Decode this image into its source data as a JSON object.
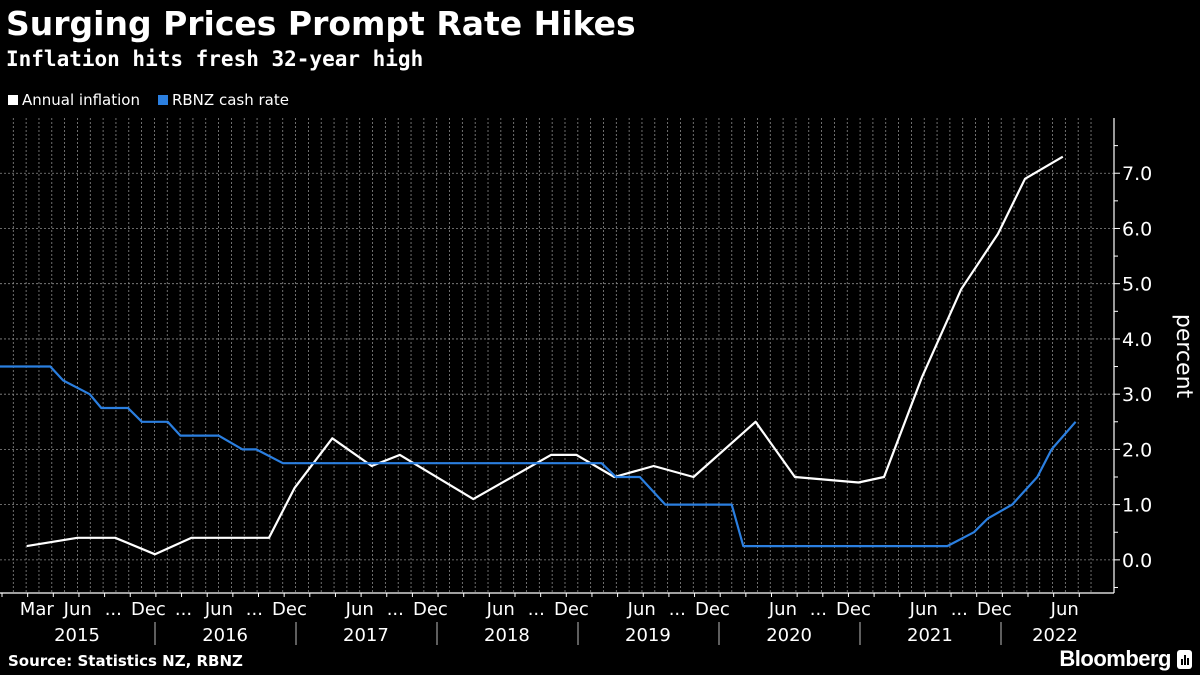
{
  "header": {
    "title": "Surging Prices Prompt Rate Hikes",
    "subtitle": "Inflation hits fresh 32-year high"
  },
  "footer": {
    "source": "Source: Statistics NZ, RBNZ",
    "brand": "Bloomberg"
  },
  "chart_data": {
    "type": "line",
    "title": "Surging Prices Prompt Rate Hikes",
    "subtitle": "Inflation hits fresh 32-year high",
    "ylabel": "percent",
    "ylim": [
      -0.6,
      8.0
    ],
    "y_ticks": [
      "0.0",
      "1.0",
      "2.0",
      "3.0",
      "4.0",
      "5.0",
      "6.0",
      "7.0"
    ],
    "y_axis_side": "right",
    "grid": true,
    "legend_position": "top-left",
    "x_month_labels": [
      {
        "label": "Mar",
        "date": "2015-03-01"
      },
      {
        "label": "Jun",
        "date": "2015-06-15"
      },
      {
        "label": "...",
        "date": "2015-09-15"
      },
      {
        "label": "Dec",
        "date": "2015-12-15"
      },
      {
        "label": "...",
        "date": "2016-03-15"
      },
      {
        "label": "Jun",
        "date": "2016-06-15"
      },
      {
        "label": "...",
        "date": "2016-09-15"
      },
      {
        "label": "Dec",
        "date": "2016-12-15"
      },
      {
        "label": "Jun",
        "date": "2017-06-15"
      },
      {
        "label": "...",
        "date": "2017-09-15"
      },
      {
        "label": "Dec",
        "date": "2017-12-15"
      },
      {
        "label": "Jun",
        "date": "2018-06-15"
      },
      {
        "label": "...",
        "date": "2018-09-15"
      },
      {
        "label": "Dec",
        "date": "2018-12-15"
      },
      {
        "label": "Jun",
        "date": "2019-06-15"
      },
      {
        "label": "...",
        "date": "2019-09-15"
      },
      {
        "label": "Dec",
        "date": "2019-12-15"
      },
      {
        "label": "Jun",
        "date": "2020-06-15"
      },
      {
        "label": "...",
        "date": "2020-09-15"
      },
      {
        "label": "Dec",
        "date": "2020-12-15"
      },
      {
        "label": "Jun",
        "date": "2021-06-15"
      },
      {
        "label": "...",
        "date": "2021-09-15"
      },
      {
        "label": "Dec",
        "date": "2021-12-15"
      },
      {
        "label": "Jun",
        "date": "2022-06-15"
      }
    ],
    "x_year_labels": [
      "2015",
      "2016",
      "2017",
      "2018",
      "2019",
      "2020",
      "2021",
      "2022"
    ],
    "colors": {
      "Annual inflation": "#ffffff",
      "RBNZ cash rate": "#2b7fe0",
      "grid": "#8a8a8a"
    },
    "series": [
      {
        "name": "Annual inflation",
        "points": [
          [
            "2015-02-03",
            0.25
          ],
          [
            "2015-06-14",
            0.4
          ],
          [
            "2015-09-20",
            0.4
          ],
          [
            "2016-01-01",
            0.1
          ],
          [
            "2016-04-05",
            0.4
          ],
          [
            "2016-10-23",
            0.4
          ],
          [
            "2016-12-28",
            1.3
          ],
          [
            "2017-04-05",
            2.2
          ],
          [
            "2017-07-16",
            1.7
          ],
          [
            "2017-09-27",
            1.9
          ],
          [
            "2018-04-05",
            1.1
          ],
          [
            "2018-10-23",
            1.9
          ],
          [
            "2018-12-28",
            1.9
          ],
          [
            "2019-04-05",
            1.5
          ],
          [
            "2019-07-16",
            1.7
          ],
          [
            "2019-10-27",
            1.5
          ],
          [
            "2020-04-05",
            2.5
          ],
          [
            "2020-07-16",
            1.5
          ],
          [
            "2020-12-28",
            1.4
          ],
          [
            "2021-03-04",
            1.5
          ],
          [
            "2021-06-10",
            3.3
          ],
          [
            "2021-09-20",
            4.9
          ],
          [
            "2021-12-24",
            5.9
          ],
          [
            "2022-03-04",
            6.9
          ],
          [
            "2022-06-10",
            7.3
          ]
        ]
      },
      {
        "name": "RBNZ cash rate",
        "points": [
          [
            "2014-11-25",
            3.5
          ],
          [
            "2015-04-05",
            3.5
          ],
          [
            "2015-05-08",
            3.25
          ],
          [
            "2015-07-16",
            3.0
          ],
          [
            "2015-08-15",
            2.75
          ],
          [
            "2015-10-23",
            2.75
          ],
          [
            "2015-11-28",
            2.5
          ],
          [
            "2016-02-03",
            2.5
          ],
          [
            "2016-03-07",
            2.25
          ],
          [
            "2016-06-14",
            2.25
          ],
          [
            "2016-08-15",
            2.0
          ],
          [
            "2016-09-20",
            2.0
          ],
          [
            "2016-11-28",
            1.75
          ],
          [
            "2019-03-03",
            1.75
          ],
          [
            "2019-04-09",
            1.5
          ],
          [
            "2019-06-10",
            1.5
          ],
          [
            "2019-08-15",
            1.0
          ],
          [
            "2020-02-03",
            1.0
          ],
          [
            "2020-03-04",
            0.25
          ],
          [
            "2021-08-15",
            0.25
          ],
          [
            "2021-10-23",
            0.5
          ],
          [
            "2021-11-28",
            0.75
          ],
          [
            "2022-01-30",
            1.0
          ],
          [
            "2022-04-05",
            1.5
          ],
          [
            "2022-05-12",
            2.0
          ],
          [
            "2022-07-13",
            2.5
          ]
        ]
      }
    ]
  }
}
